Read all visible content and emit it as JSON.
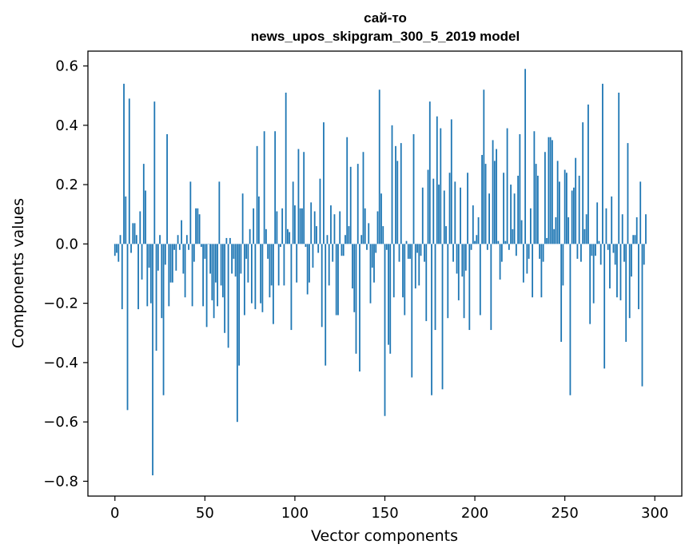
{
  "chart_data": {
    "type": "bar",
    "title": "сай-то",
    "subtitle": "news_upos_skipgram_300_5_2019 model",
    "xlabel": "Vector components",
    "ylabel": "Components values",
    "xlim": [
      -15,
      315
    ],
    "ylim": [
      -0.85,
      0.65
    ],
    "xticks": [
      0,
      50,
      100,
      150,
      200,
      250,
      300
    ],
    "yticks": [
      -0.8,
      -0.6,
      -0.4,
      -0.2,
      0.0,
      0.2,
      0.4,
      0.6
    ],
    "xtick_labels": [
      "0",
      "50",
      "100",
      "150",
      "200",
      "250",
      "300"
    ],
    "ytick_labels": [
      "−0.8",
      "−0.6",
      "−0.4",
      "−0.2",
      "0.0",
      "0.2",
      "0.4",
      "0.6"
    ],
    "bar_color": "#1f77b4",
    "grid": false,
    "legend": "none",
    "values": [
      -0.04,
      -0.03,
      -0.06,
      0.03,
      -0.22,
      0.54,
      0.16,
      -0.56,
      0.49,
      -0.03,
      0.07,
      0.07,
      0.03,
      -0.22,
      0.11,
      -0.12,
      0.27,
      0.18,
      -0.21,
      -0.08,
      -0.2,
      -0.78,
      0.48,
      -0.36,
      -0.09,
      0.03,
      -0.25,
      -0.51,
      -0.07,
      0.37,
      -0.21,
      -0.13,
      -0.13,
      -0.02,
      -0.09,
      0.03,
      -0.02,
      0.08,
      -0.1,
      -0.18,
      0.03,
      -0.02,
      0.21,
      -0.21,
      -0.06,
      0.12,
      0.12,
      0.1,
      -0.01,
      -0.21,
      -0.05,
      -0.28,
      0.0,
      -0.1,
      -0.19,
      -0.25,
      -0.13,
      -0.21,
      0.21,
      -0.14,
      -0.18,
      -0.3,
      0.02,
      -0.35,
      0.02,
      -0.1,
      -0.05,
      -0.11,
      -0.6,
      -0.41,
      -0.1,
      0.17,
      -0.24,
      -0.05,
      -0.13,
      0.05,
      -0.2,
      0.12,
      -0.22,
      0.33,
      0.16,
      -0.2,
      -0.23,
      0.38,
      0.05,
      -0.05,
      -0.18,
      -0.14,
      -0.27,
      0.38,
      0.11,
      -0.14,
      -0.01,
      0.12,
      -0.14,
      0.51,
      0.05,
      0.04,
      -0.29,
      0.21,
      0.13,
      -0.13,
      0.32,
      0.12,
      0.12,
      0.31,
      -0.01,
      -0.17,
      -0.13,
      0.14,
      -0.08,
      0.11,
      0.06,
      -0.03,
      0.22,
      -0.28,
      0.41,
      -0.41,
      0.03,
      -0.14,
      0.13,
      -0.06,
      0.1,
      -0.24,
      -0.24,
      0.11,
      -0.04,
      -0.04,
      0.03,
      0.36,
      0.06,
      0.26,
      -0.15,
      -0.23,
      -0.37,
      0.27,
      -0.43,
      0.03,
      0.31,
      0.12,
      -0.02,
      0.07,
      -0.2,
      -0.08,
      -0.13,
      -0.03,
      0.11,
      0.52,
      0.17,
      0.06,
      -0.58,
      -0.02,
      -0.34,
      -0.37,
      0.4,
      -0.18,
      0.33,
      0.28,
      -0.06,
      0.34,
      -0.18,
      -0.24,
      0.01,
      -0.05,
      -0.05,
      -0.45,
      0.37,
      -0.15,
      -0.03,
      -0.14,
      -0.04,
      0.19,
      -0.06,
      -0.26,
      0.25,
      0.48,
      -0.51,
      0.22,
      -0.29,
      0.43,
      0.2,
      0.39,
      -0.49,
      0.18,
      0.06,
      -0.25,
      0.24,
      0.42,
      -0.06,
      0.21,
      -0.1,
      -0.19,
      0.19,
      -0.11,
      -0.25,
      -0.09,
      0.24,
      -0.29,
      -0.02,
      0.13,
      0.01,
      0.03,
      0.09,
      -0.24,
      0.3,
      0.52,
      0.27,
      -0.02,
      0.17,
      -0.29,
      0.35,
      0.28,
      0.32,
      0.01,
      -0.12,
      -0.06,
      0.24,
      0.01,
      0.39,
      -0.02,
      0.2,
      0.05,
      0.17,
      -0.04,
      0.23,
      0.37,
      0.08,
      -0.13,
      0.59,
      -0.1,
      -0.05,
      0.12,
      -0.18,
      0.38,
      0.27,
      0.23,
      -0.05,
      -0.18,
      -0.06,
      0.31,
      0.02,
      0.36,
      0.36,
      0.35,
      0.05,
      0.09,
      0.28,
      0.21,
      -0.33,
      -0.14,
      0.25,
      0.24,
      0.09,
      -0.51,
      0.18,
      0.19,
      0.29,
      -0.05,
      0.23,
      -0.06,
      0.41,
      0.05,
      0.1,
      0.47,
      -0.27,
      -0.04,
      -0.2,
      -0.04,
      0.14,
      0.01,
      -0.07,
      0.54,
      -0.42,
      0.12,
      -0.02,
      -0.15,
      0.16,
      -0.03,
      -0.07,
      -0.18,
      0.51,
      -0.19,
      0.1,
      -0.06,
      -0.33,
      0.34,
      -0.25,
      -0.11,
      0.03,
      0.03,
      0.09,
      -0.22,
      0.21,
      -0.48,
      -0.07,
      0.1
    ]
  }
}
